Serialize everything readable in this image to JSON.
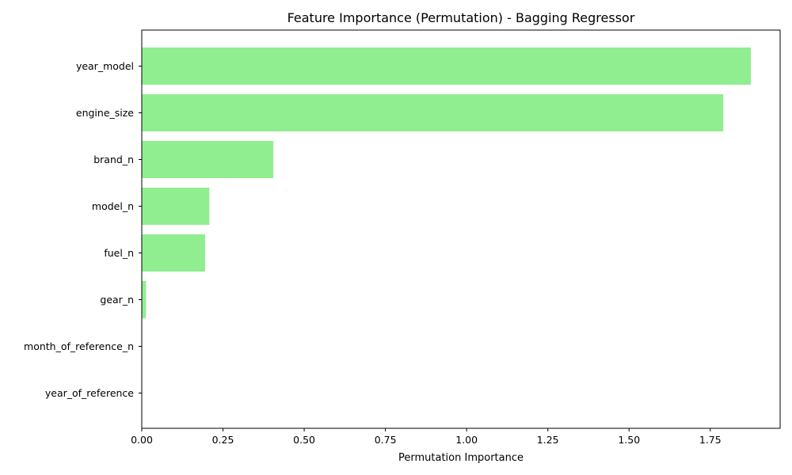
{
  "chart_data": {
    "type": "bar",
    "orientation": "horizontal",
    "title": "Feature Importance (Permutation) - Bagging Regressor",
    "xlabel": "Permutation Importance",
    "ylabel": "",
    "categories": [
      "year_model",
      "engine_size",
      "brand_n",
      "model_n",
      "fuel_n",
      "gear_n",
      "month_of_reference_n",
      "year_of_reference"
    ],
    "values": [
      1.875,
      1.79,
      0.405,
      0.208,
      0.195,
      0.013,
      0.0,
      0.0
    ],
    "xlim": [
      0,
      1.965
    ],
    "xticks": [
      0.0,
      0.25,
      0.5,
      0.75,
      1.0,
      1.25,
      1.5,
      1.75
    ],
    "xtick_labels": [
      "0.00",
      "0.25",
      "0.50",
      "0.75",
      "1.00",
      "1.25",
      "1.50",
      "1.75"
    ],
    "grid": false,
    "legend": "none",
    "bar_color": "#90ee90"
  }
}
